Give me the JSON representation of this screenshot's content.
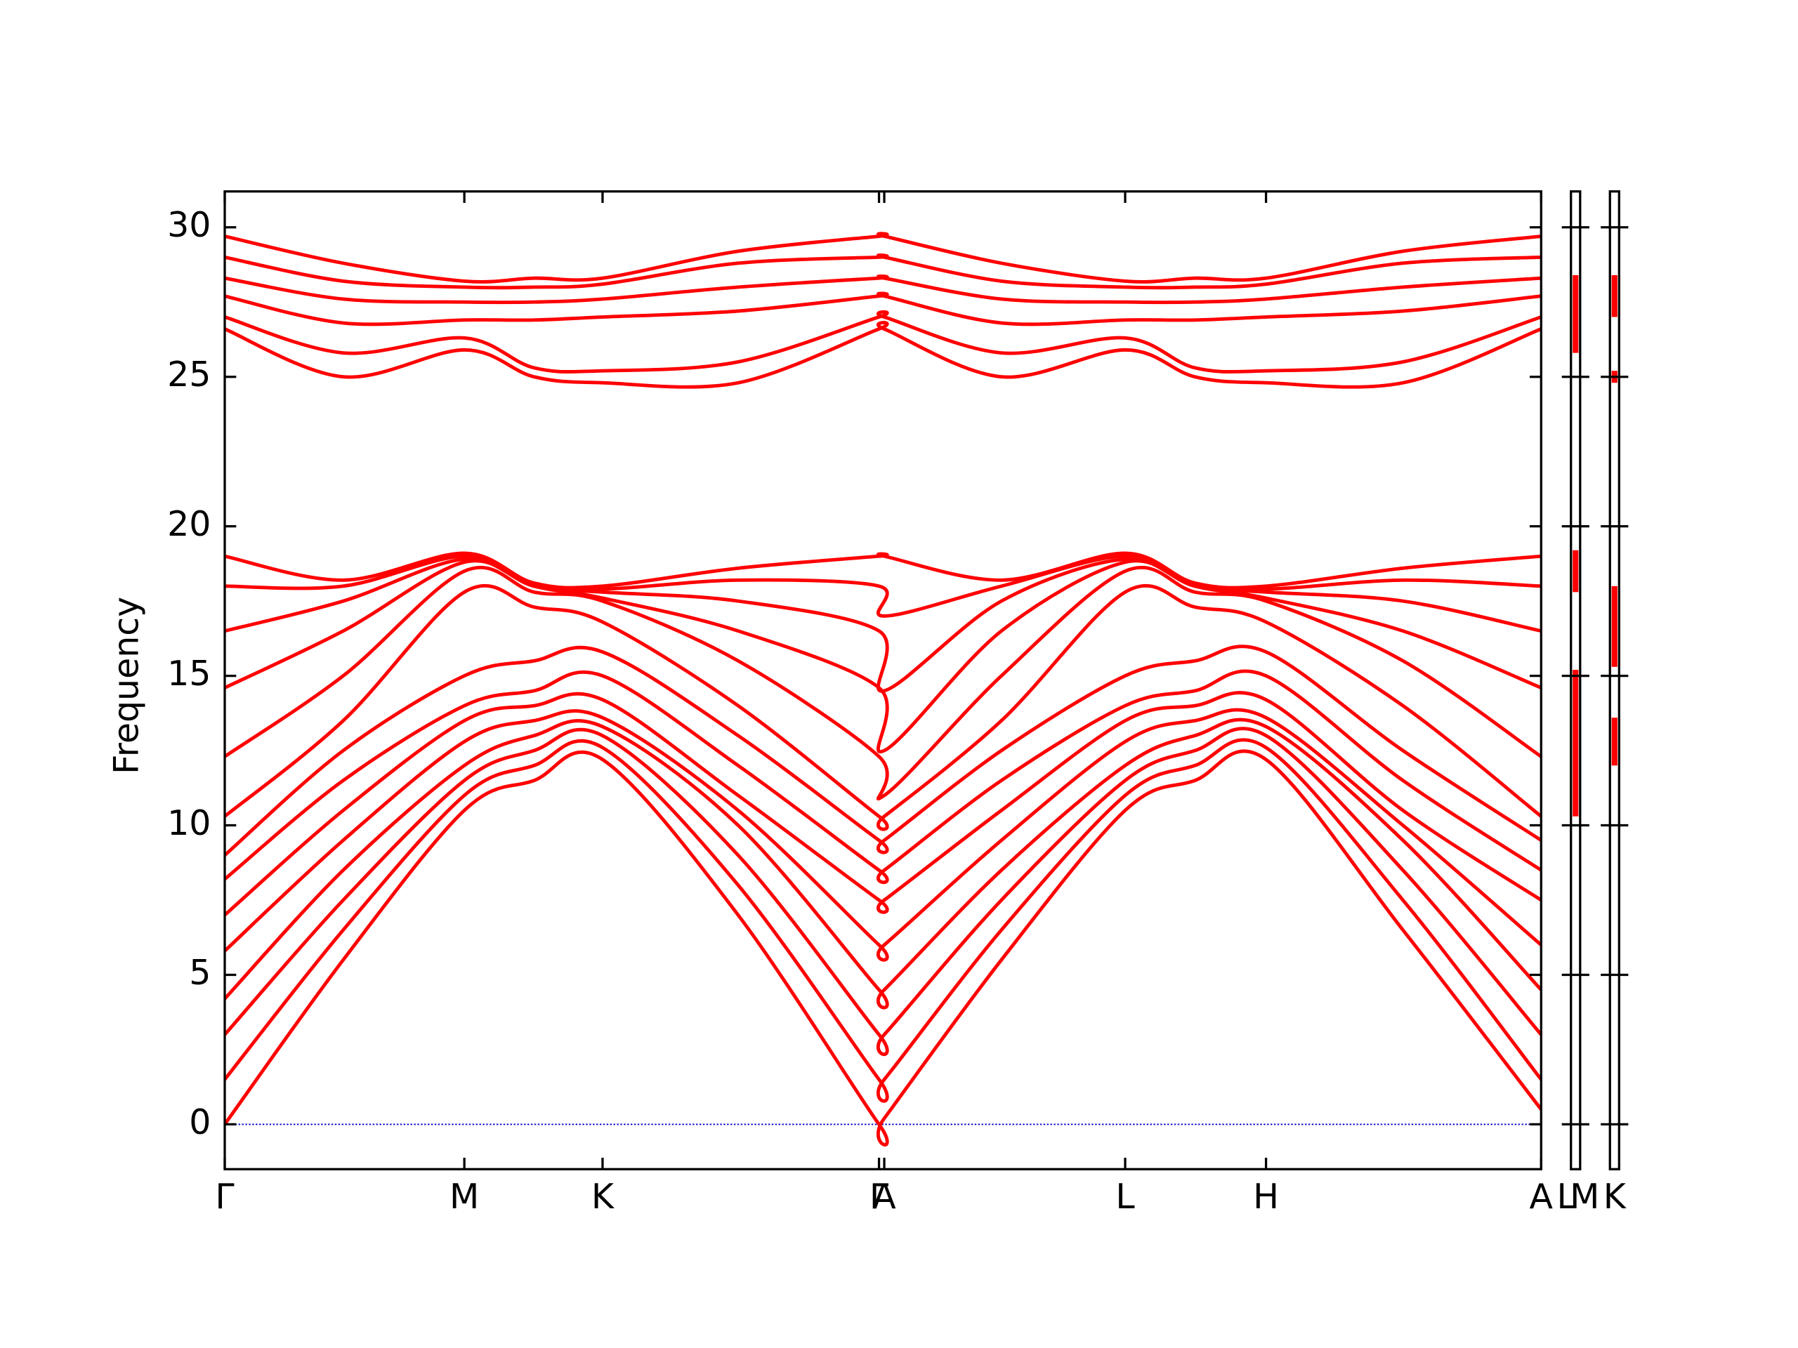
{
  "chart_data": {
    "type": "line",
    "y_label": "Frequency",
    "color": "#ff0000",
    "zero_line": 0,
    "zero_line_color": "#0000cc",
    "ylim": [
      -1.5,
      31.2
    ],
    "yticks": [
      0,
      5,
      10,
      15,
      20,
      25,
      30
    ],
    "xlim": [
      0,
      1
    ],
    "xticks": [
      {
        "value": 0,
        "label": "Γ"
      },
      {
        "value": 0.182,
        "label": "M"
      },
      {
        "value": 0.287,
        "label": "K"
      },
      {
        "value": 0.497,
        "label": "Γ"
      },
      {
        "value": 0.501,
        "label": "A"
      },
      {
        "value": 0.684,
        "label": "L"
      },
      {
        "value": 0.791,
        "label": "H"
      },
      {
        "value": 1,
        "label": "A"
      }
    ],
    "x": [
      0,
      0.09,
      0.182,
      0.235,
      0.287,
      0.39,
      0.497,
      0.501,
      0.59,
      0.684,
      0.737,
      0.791,
      0.895,
      1
    ],
    "series": [
      {
        "values": [
          0,
          5.5,
          10.5,
          11.5,
          12.2,
          7,
          0,
          0.2,
          5.5,
          10.5,
          11.5,
          12.2,
          6.5,
          0.5
        ]
      },
      {
        "values": [
          1.5,
          6.5,
          11,
          12,
          12.6,
          8,
          1.5,
          1.5,
          6.5,
          11,
          12,
          12.6,
          7.5,
          1.5
        ]
      },
      {
        "values": [
          3,
          7.5,
          11.5,
          12.5,
          13,
          9,
          3,
          3,
          7.5,
          11.5,
          12.5,
          13,
          8.5,
          3
        ]
      },
      {
        "values": [
          4.2,
          8.5,
          12,
          13,
          13.3,
          10,
          4.5,
          4.5,
          8.5,
          12,
          13,
          13.3,
          9.5,
          4.5
        ]
      },
      {
        "values": [
          5.8,
          9.5,
          12.8,
          13.5,
          13.6,
          10.5,
          6,
          6,
          9.5,
          12.8,
          13.5,
          13.6,
          10,
          6
        ]
      },
      {
        "values": [
          7,
          10.5,
          13.5,
          14,
          14.2,
          11,
          7.5,
          7.5,
          10.5,
          13.5,
          14,
          14.2,
          10.5,
          7.5
        ]
      },
      {
        "values": [
          8.2,
          11.5,
          14,
          14.5,
          15,
          12,
          8.5,
          8.5,
          11.5,
          14,
          14.5,
          15,
          11.5,
          8.5
        ]
      },
      {
        "values": [
          9,
          12.5,
          15,
          15.5,
          15.8,
          13,
          9.5,
          9.5,
          12.5,
          15,
          15.5,
          15.8,
          12.5,
          9.5
        ]
      },
      {
        "values": [
          10.3,
          13.5,
          17.8,
          17.3,
          16.8,
          14,
          10.3,
          10.3,
          13.5,
          17.8,
          17.3,
          16.8,
          14,
          10.3
        ]
      },
      {
        "values": [
          12.3,
          15,
          18.5,
          17.8,
          17.5,
          15.5,
          12.3,
          11,
          15,
          18.5,
          17.8,
          17.5,
          15.5,
          12.3
        ]
      },
      {
        "values": [
          14.6,
          16.5,
          18.8,
          18,
          17.6,
          16.5,
          14.6,
          12.5,
          16.5,
          18.8,
          18,
          17.6,
          16.5,
          14.6
        ]
      },
      {
        "values": [
          16.5,
          17.5,
          18.9,
          18,
          17.8,
          17.5,
          16.5,
          14.5,
          17.5,
          18.9,
          18,
          17.8,
          17.5,
          16.5
        ]
      },
      {
        "values": [
          18,
          18,
          19,
          18.1,
          17.9,
          18.2,
          18,
          17,
          18,
          19,
          18.1,
          17.9,
          18.2,
          18
        ]
      },
      {
        "values": [
          19,
          18.2,
          19.1,
          18.1,
          18,
          18.6,
          19,
          19,
          18.2,
          19.1,
          18.1,
          18,
          18.6,
          19
        ]
      },
      {
        "values": [
          26.6,
          25,
          25.9,
          25,
          24.8,
          24.8,
          26.6,
          26.6,
          25,
          25.9,
          25,
          24.8,
          24.8,
          26.6
        ]
      },
      {
        "values": [
          27,
          25.8,
          26.3,
          25.3,
          25.2,
          25.5,
          27,
          27,
          25.8,
          26.3,
          25.3,
          25.2,
          25.5,
          27
        ]
      },
      {
        "values": [
          27.7,
          26.8,
          26.9,
          26.9,
          27,
          27.2,
          27.7,
          27.7,
          26.8,
          26.9,
          26.9,
          27,
          27.2,
          27.7
        ]
      },
      {
        "values": [
          28.3,
          27.6,
          27.5,
          27.5,
          27.6,
          28,
          28.3,
          28.3,
          27.6,
          27.5,
          27.5,
          27.6,
          28,
          28.3
        ]
      },
      {
        "values": [
          29,
          28.2,
          28,
          28,
          28.1,
          28.8,
          29,
          29,
          28.2,
          28,
          28,
          28.1,
          28.8,
          29
        ]
      },
      {
        "values": [
          29.7,
          28.8,
          28.2,
          28.3,
          28.3,
          29.2,
          29.7,
          29.7,
          28.8,
          28.2,
          28.3,
          28.3,
          29.2,
          29.7
        ]
      }
    ],
    "panels": [
      {
        "xticks": [
          {
            "value": 0,
            "label": "L"
          },
          {
            "value": 1,
            "label": "M"
          }
        ],
        "segments": [
          [
            25.8,
            28.4
          ],
          [
            17.8,
            19.2
          ],
          [
            10.3,
            15.2
          ]
        ]
      },
      {
        "xticks": [
          {
            "value": 0,
            "label": "K"
          }
        ],
        "segments": [
          [
            27,
            28.4
          ],
          [
            24.8,
            25.2
          ],
          [
            15.3,
            18
          ],
          [
            12,
            13.6
          ]
        ]
      }
    ]
  }
}
